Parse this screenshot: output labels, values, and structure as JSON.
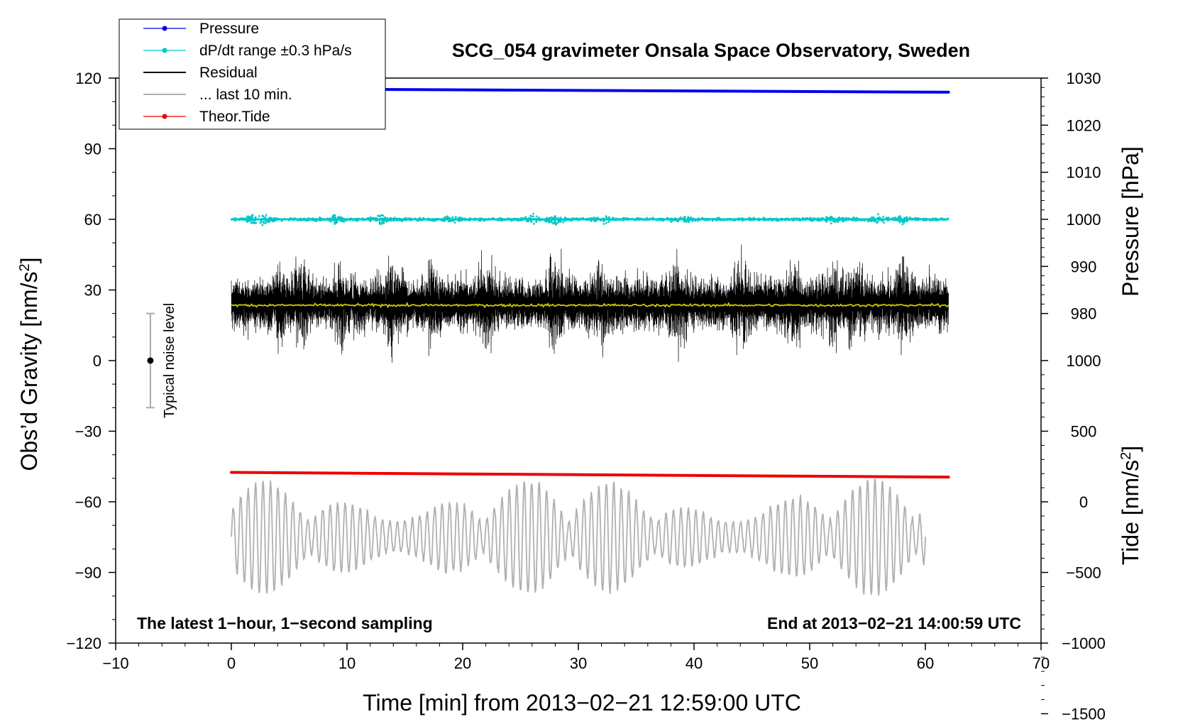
{
  "chart_data": {
    "type": "line",
    "title": "SCG_054 gravimeter Onsala Space Observatory, Sweden",
    "xlabel": "Time [min] from 2013−02−21 12:59:00 UTC",
    "ylabel_left": "Obs’d Gravity [nm/s²]",
    "ylabel_left_prefix": "Obs’d Gravity [nm/s",
    "ylabel_left_suffix": "]",
    "ylabel_right_pressure": "Pressure [hPa]",
    "ylabel_right_tide": "Tide [nm/s²]",
    "ylabel_right_tide_prefix": "Tide [nm/s",
    "ylabel_right_tide_suffix": "]",
    "superscript": "2",
    "xlim": [
      -10,
      70
    ],
    "ylim": [
      -120,
      120
    ],
    "x_ticks": [
      -10,
      0,
      10,
      20,
      30,
      40,
      50,
      60,
      70
    ],
    "x_tick_labels": [
      "−10",
      "0",
      "10",
      "20",
      "30",
      "40",
      "50",
      "60",
      "70"
    ],
    "y_ticks": [
      -120,
      -90,
      -60,
      -30,
      0,
      30,
      60,
      90,
      120
    ],
    "y_tick_labels": [
      "−120",
      "−90",
      "−60",
      "−30",
      "0",
      "30",
      "60",
      "90",
      "120"
    ],
    "pressure_axis": {
      "range_hPa": [
        1000,
        1030
      ],
      "gravity_span": [
        60,
        120
      ],
      "ticks": [
        980,
        990,
        1000,
        1010,
        1020,
        1030
      ],
      "tick_labels": [
        "980",
        "990",
        "1000",
        "1010",
        "1020",
        "1030"
      ]
    },
    "tide_axis": {
      "ticks": [
        -1500,
        -1000,
        -500,
        0,
        500,
        1000
      ],
      "tick_labels": [
        "−1500",
        "−1000",
        "−500",
        "0",
        "500",
        "1000"
      ],
      "gravity_per_unit": 0.06,
      "gravity_offset": -60
    },
    "legend": {
      "position": "top-left",
      "entries": [
        {
          "label": "Pressure",
          "color": "#0000ee",
          "marker": true
        },
        {
          "label": "dP/dt range ±0.3 hPa/s",
          "color": "#00c8c8",
          "marker": true
        },
        {
          "label": "Residual",
          "color": "#000000",
          "marker": false
        },
        {
          "label": "... last 10 min.",
          "color": "#b0b0b0",
          "marker": false
        },
        {
          "label": "Theor.Tide",
          "color": "#ee0000",
          "marker": true
        }
      ]
    },
    "series": [
      {
        "name": "Pressure",
        "color": "#0000ee",
        "x_range": [
          0,
          62
        ],
        "y_start": 115.5,
        "y_end": 114.0
      },
      {
        "name": "dP/dt range ±0.3 hPa/s",
        "color": "#00c8c8",
        "x_range": [
          0,
          62
        ],
        "center": 60,
        "spread": 3
      },
      {
        "name": "Residual",
        "color": "#000000",
        "x_range": [
          0,
          62
        ],
        "center": 24,
        "spread": 25
      },
      {
        "name": "Residual mean",
        "color": "#cccc00",
        "x_range": [
          0,
          62
        ],
        "center": 23.5
      },
      {
        "name": "... last 10 min.",
        "color": "#b0b0b0",
        "x_range": [
          0,
          60
        ],
        "center": -75,
        "amplitude": 25
      },
      {
        "name": "Theor.Tide",
        "color": "#ee0000",
        "x_range": [
          0,
          62
        ],
        "y_start": -47.5,
        "y_end": -49.5
      }
    ],
    "noise_level": {
      "x": -7,
      "center": 0,
      "half_range": 20,
      "label": "Typical noise level"
    },
    "annotations": {
      "bottom_left": "The latest 1−hour, 1−second sampling",
      "bottom_right": "End at 2013−02−21 14:00:59 UTC"
    }
  }
}
